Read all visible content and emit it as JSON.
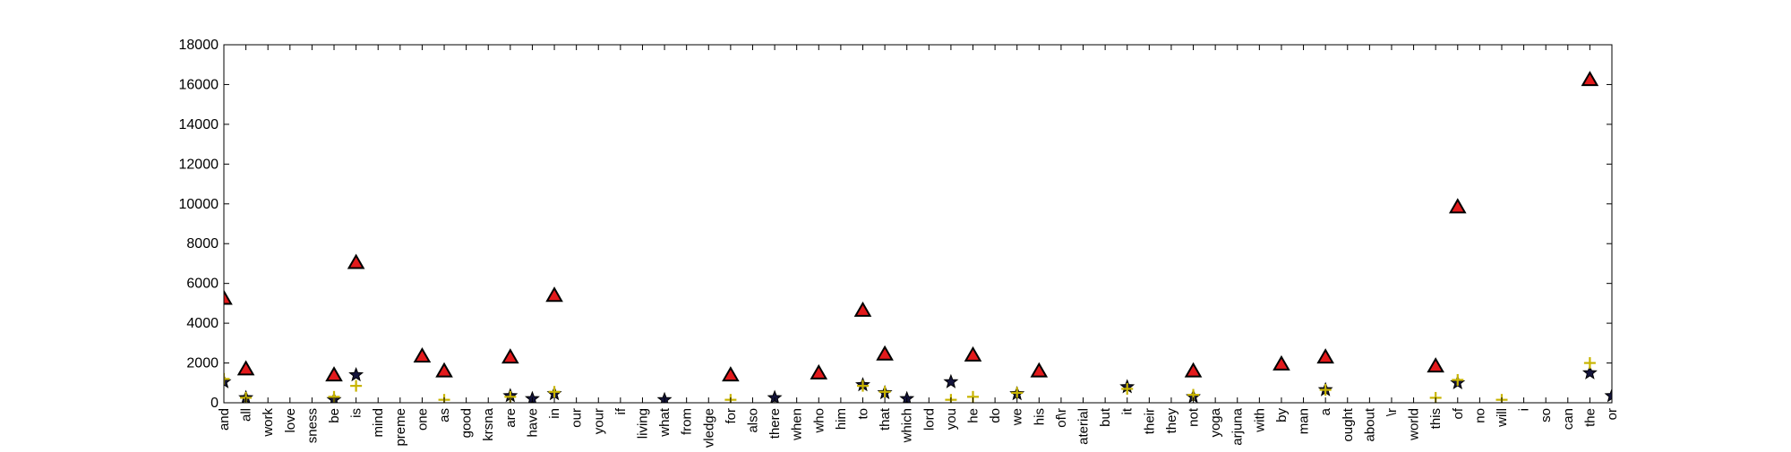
{
  "chart_data": {
    "type": "scatter",
    "title": "",
    "xlabel": "",
    "ylabel": "",
    "ylim": [
      0,
      18000
    ],
    "yticks": [
      0,
      2000,
      4000,
      6000,
      8000,
      10000,
      12000,
      14000,
      16000,
      18000
    ],
    "grid": false,
    "legend": "none",
    "categories": [
      "and",
      "all",
      "work",
      "love",
      "sness",
      "be",
      "is",
      "mind",
      "preme",
      "one",
      "as",
      "good",
      "krsna",
      "are",
      "have",
      "in",
      "our",
      "your",
      "if",
      "living",
      "what",
      "from",
      "vledge",
      "for",
      "also",
      "there",
      "when",
      "who",
      "him",
      "to",
      "that",
      "which",
      "lord",
      "you",
      "he",
      "do",
      "we",
      "his",
      "of\\r",
      "aterial",
      "but",
      "it",
      "their",
      "they",
      "not",
      "yoga",
      "arjuna",
      "with",
      "by",
      "man",
      "a",
      "ought",
      "about",
      "\\r",
      "world",
      "this",
      "of",
      "no",
      "will",
      "i",
      "so",
      "can",
      "the",
      "or"
    ],
    "series": [
      {
        "marker": "triangle",
        "color": "#e31a1c",
        "values": [
          5200,
          1650,
          null,
          null,
          null,
          1350,
          7000,
          null,
          null,
          2300,
          1550,
          null,
          null,
          2250,
          null,
          5350,
          null,
          null,
          null,
          null,
          null,
          null,
          null,
          1350,
          null,
          null,
          null,
          1450,
          null,
          4600,
          2400,
          null,
          null,
          null,
          2350,
          null,
          null,
          1550,
          null,
          null,
          null,
          null,
          null,
          null,
          1550,
          null,
          null,
          null,
          1900,
          null,
          2250,
          null,
          null,
          null,
          null,
          1800,
          9800,
          null,
          null,
          null,
          null,
          null,
          16200,
          null
        ]
      },
      {
        "marker": "star",
        "color": "#14143c",
        "values": [
          1050,
          250,
          null,
          null,
          null,
          150,
          1400,
          null,
          null,
          null,
          null,
          null,
          null,
          350,
          200,
          450,
          null,
          null,
          null,
          null,
          150,
          null,
          null,
          null,
          null,
          250,
          null,
          null,
          null,
          900,
          500,
          200,
          null,
          1050,
          null,
          null,
          450,
          null,
          null,
          null,
          null,
          800,
          null,
          null,
          300,
          null,
          null,
          null,
          null,
          null,
          650,
          null,
          null,
          null,
          null,
          null,
          1000,
          null,
          null,
          null,
          null,
          null,
          1500,
          350
        ]
      },
      {
        "marker": "plus",
        "color": "#c8b400",
        "values": [
          1200,
          250,
          null,
          null,
          null,
          300,
          850,
          null,
          null,
          null,
          150,
          null,
          null,
          300,
          null,
          550,
          null,
          null,
          null,
          null,
          null,
          null,
          null,
          150,
          null,
          null,
          null,
          null,
          null,
          850,
          550,
          null,
          null,
          150,
          300,
          null,
          500,
          null,
          null,
          null,
          null,
          700,
          null,
          null,
          400,
          null,
          null,
          null,
          null,
          null,
          650,
          null,
          null,
          null,
          null,
          250,
          1150,
          null,
          150,
          null,
          null,
          null,
          2000,
          null
        ]
      }
    ]
  }
}
